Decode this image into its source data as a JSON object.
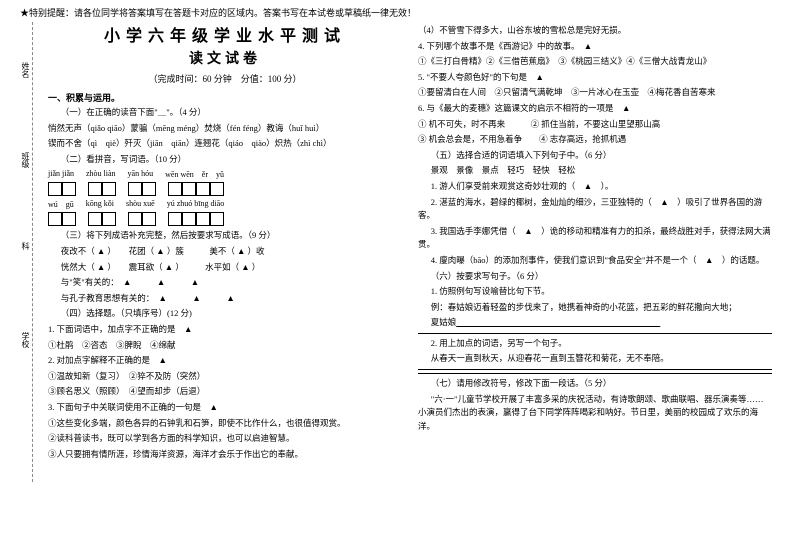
{
  "reminder": "★特别提醒：请各位同学将答案填写在答题卡对应的区域内。答案书写在本试卷或草稿纸一律无效！",
  "title_main": "小学六年级学业水平测试",
  "title_sub": "读文试卷",
  "time_info": "（完成时间：60 分钟　分值：100 分）",
  "margin": {
    "t1": "姓名",
    "t2": "班级",
    "t3": "科",
    "t4": "学校"
  },
  "sec1": "一、积累与运用。",
  "s1_1": "（一）在正确的读音下面\"＿\"。（4 分）",
  "s1_1_line1": "悄然无声（qiǎo qiāo）蒙骗（mēng méng）焚烧（fén féng）教诲（huǐ huì）",
  "s1_1_line2": "锲而不舍（qì　qiè）歼灭（jiān　qiān）连翘花（qiáo　qiào）炽热（zhì chì）",
  "s1_2": "（二）看拼音，写词语。（10 分）",
  "pinyin": {
    "r1": [
      "jiǎn jiǎn",
      "zhòu liàn",
      "yān hóu",
      "wēn wēn　ěr　yǔ"
    ],
    "r2": [
      "wú　gū",
      "kōng kǒi",
      "shòu xuē",
      "yú zhuó bīng diāo"
    ]
  },
  "s1_3": "（三）将下列成语补充完整，然后按要求写成语。（9 分）",
  "s1_3_l1": "夜改不（ ▲ ）　　花团（ ▲ ）簇　　　美不（ ▲ ）收",
  "s1_3_l2": "恍然大（ ▲ ）　　震耳欲（ ▲ ）　　　水平如（ ▲ ）",
  "s1_3_l3": "与\"笑\"有关的：　▲　　　▲　　　▲　",
  "s1_3_l4": "与孔子教育思想有关的：　▲　　　▲　　　▲　",
  "s1_4": "（四）选择题。（只填序号）(12 分)",
  "s1_4_1": "1. 下面词语中，加点字不正确的是　▲　",
  "s1_4_1a": "①杜鹃　②咨态　③脾睨　④绵献",
  "s1_4_2": "2. 对加点字解释不正确的是　▲　",
  "s1_4_2a": "①温故知新（复习）　②猝不及防（突然）",
  "s1_4_2b": "③顾名思义（照顾）　④望而却步（后退）",
  "s1_4_3": "3. 下面句子中关联词使用不正确的一句是　▲　",
  "s1_4_3a": "①这些变化多端，颜色各异的石钟乳和石笋，即使不比作什么，也很值得观赏。",
  "s1_4_3b": "②读科普读书，既可以学到各方面的科学知识，也可以启迪智慧。",
  "s1_4_3c": "③人只要拥有情所涯，珍情海洋资源，海洋才会乐于作出它的奉献。",
  "r4": "（4）不管雪下得多大，山谷东坡的雪松总是完好无损。",
  "q4": "4. 下列哪个故事不是《西游记》中的故事。　▲　",
  "q4a": "①《三打白骨精》②《三借芭蕉扇》　③《桃园三结义》④《三僧大战青龙山》",
  "q5": "5. \"不要人夸颜色好\"的下句是　▲　",
  "q5a": "①要留清白在人间　②只留清气满乾坤　③一片冰心在玉壶　④梅花香自苦寒来",
  "q6": "6. 与《最大的麦穗》这篇课文的启示不相符的一项是　▲　",
  "q6a": "① 机不可失，时不再来　　　② 抓住当前，不要这山里望那山高",
  "q6b": "③ 机会总会是，不用急着争　　④ 志存高远，抢抓机遇",
  "s5": "（五）选择合适的词语填入下列句子中。（6 分）",
  "s5a": "景观　景像　景点　轻巧　轻快　轻松",
  "s5_1": "1. 游人们享受前来观赏这奇妙壮观的（　▲　）。",
  "s5_2": "2. 湛蓝的海水，碧绿的椰树，金灿灿的细沙，三亚独特的（　▲　）吸引了世界各国的游客。",
  "s5_3": "3. 我国选手李娜凭借（　▲　）诡的移动和精准有力的扣杀，最终战胜对手，获得法网大满贯。",
  "s5_4": "4. 廋肉曝（bāo）的添加剂事件，使我们意识到\"食品安全\"并不是一个（　▲　）的话题。",
  "s6": "（六）按要求写句子。（6 分）",
  "s6_1": "1. 仿照例句写设喻替比句下节。",
  "s6_ex": "例：春姑娘迈着轻盈的步伐来了，她携着神奇的小花篮，把五彩的鲜花撒向大地；",
  "s6_xia": "夏姑娘",
  "s6_2": "2. 用上加点的词语，另写一个句子。",
  "s6_2a": "从春天一直到秋天，从迎春花一直到玉簪花和菊花，无不奉陪。",
  "s7": "（七）请用修改符号，修改下面一段话。（5 分）",
  "s7_text": "\"六·一\"儿童节学校开展了丰富多采的庆祝活动，有诗歌朗颂、歌曲联唱、器乐演奏等……小演员们杰出的表演，赢得了台下同学阵阵喝彩和呐好。节日里，美丽的校园成了欢乐的海洋。"
}
